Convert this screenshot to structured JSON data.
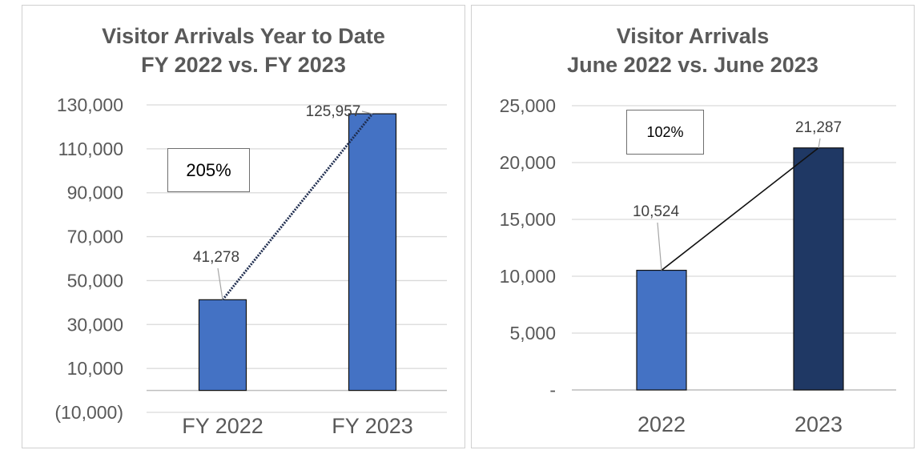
{
  "colors": {
    "bar_blue": "#4472C4",
    "bar_dark": "#1F3864",
    "line": "#1F2D4F",
    "grid": "#d9d9d9",
    "text": "#595959"
  },
  "left": {
    "title_line1": "Visitor Arrivals Year to Date",
    "title_line2": "FY 2022 vs. FY 2023",
    "change_label": "205%"
  },
  "right": {
    "title_line1": "Visitor Arrivals",
    "title_line2": "June 2022 vs. June 2023",
    "change_label": "102%"
  },
  "chart_data": [
    {
      "type": "bar",
      "title": "Visitor Arrivals Year to Date FY 2022 vs. FY 2023",
      "categories": [
        "FY 2022",
        "FY 2023"
      ],
      "values": [
        41278,
        125957
      ],
      "data_labels": [
        "41,278",
        "125,957"
      ],
      "bar_colors": [
        "#4472C4",
        "#4472C4"
      ],
      "ylim": [
        -10000,
        130000
      ],
      "yticks": [
        -10000,
        10000,
        30000,
        50000,
        70000,
        90000,
        110000,
        130000
      ],
      "ytick_labels": [
        "(10,000)",
        "10,000",
        "30,000",
        "50,000",
        "70,000",
        "90,000",
        "110,000",
        "130,000"
      ],
      "baseline": 0,
      "trend_line": true,
      "trend_style": "dotted",
      "annotation": "205%",
      "grid": true,
      "legend": "none"
    },
    {
      "type": "bar",
      "title": "Visitor Arrivals June 2022 vs. June 2023",
      "categories": [
        "2022",
        "2023"
      ],
      "values": [
        10524,
        21287
      ],
      "data_labels": [
        "10,524",
        "21,287"
      ],
      "bar_colors": [
        "#4472C4",
        "#1F3864"
      ],
      "ylim": [
        0,
        25000
      ],
      "yticks": [
        0,
        5000,
        10000,
        15000,
        20000,
        25000
      ],
      "ytick_labels": [
        "-",
        "5,000",
        "10,000",
        "15,000",
        "20,000",
        "25,000"
      ],
      "baseline": 0,
      "trend_line": true,
      "trend_style": "solid",
      "annotation": "102%",
      "grid": true,
      "legend": "none"
    }
  ]
}
